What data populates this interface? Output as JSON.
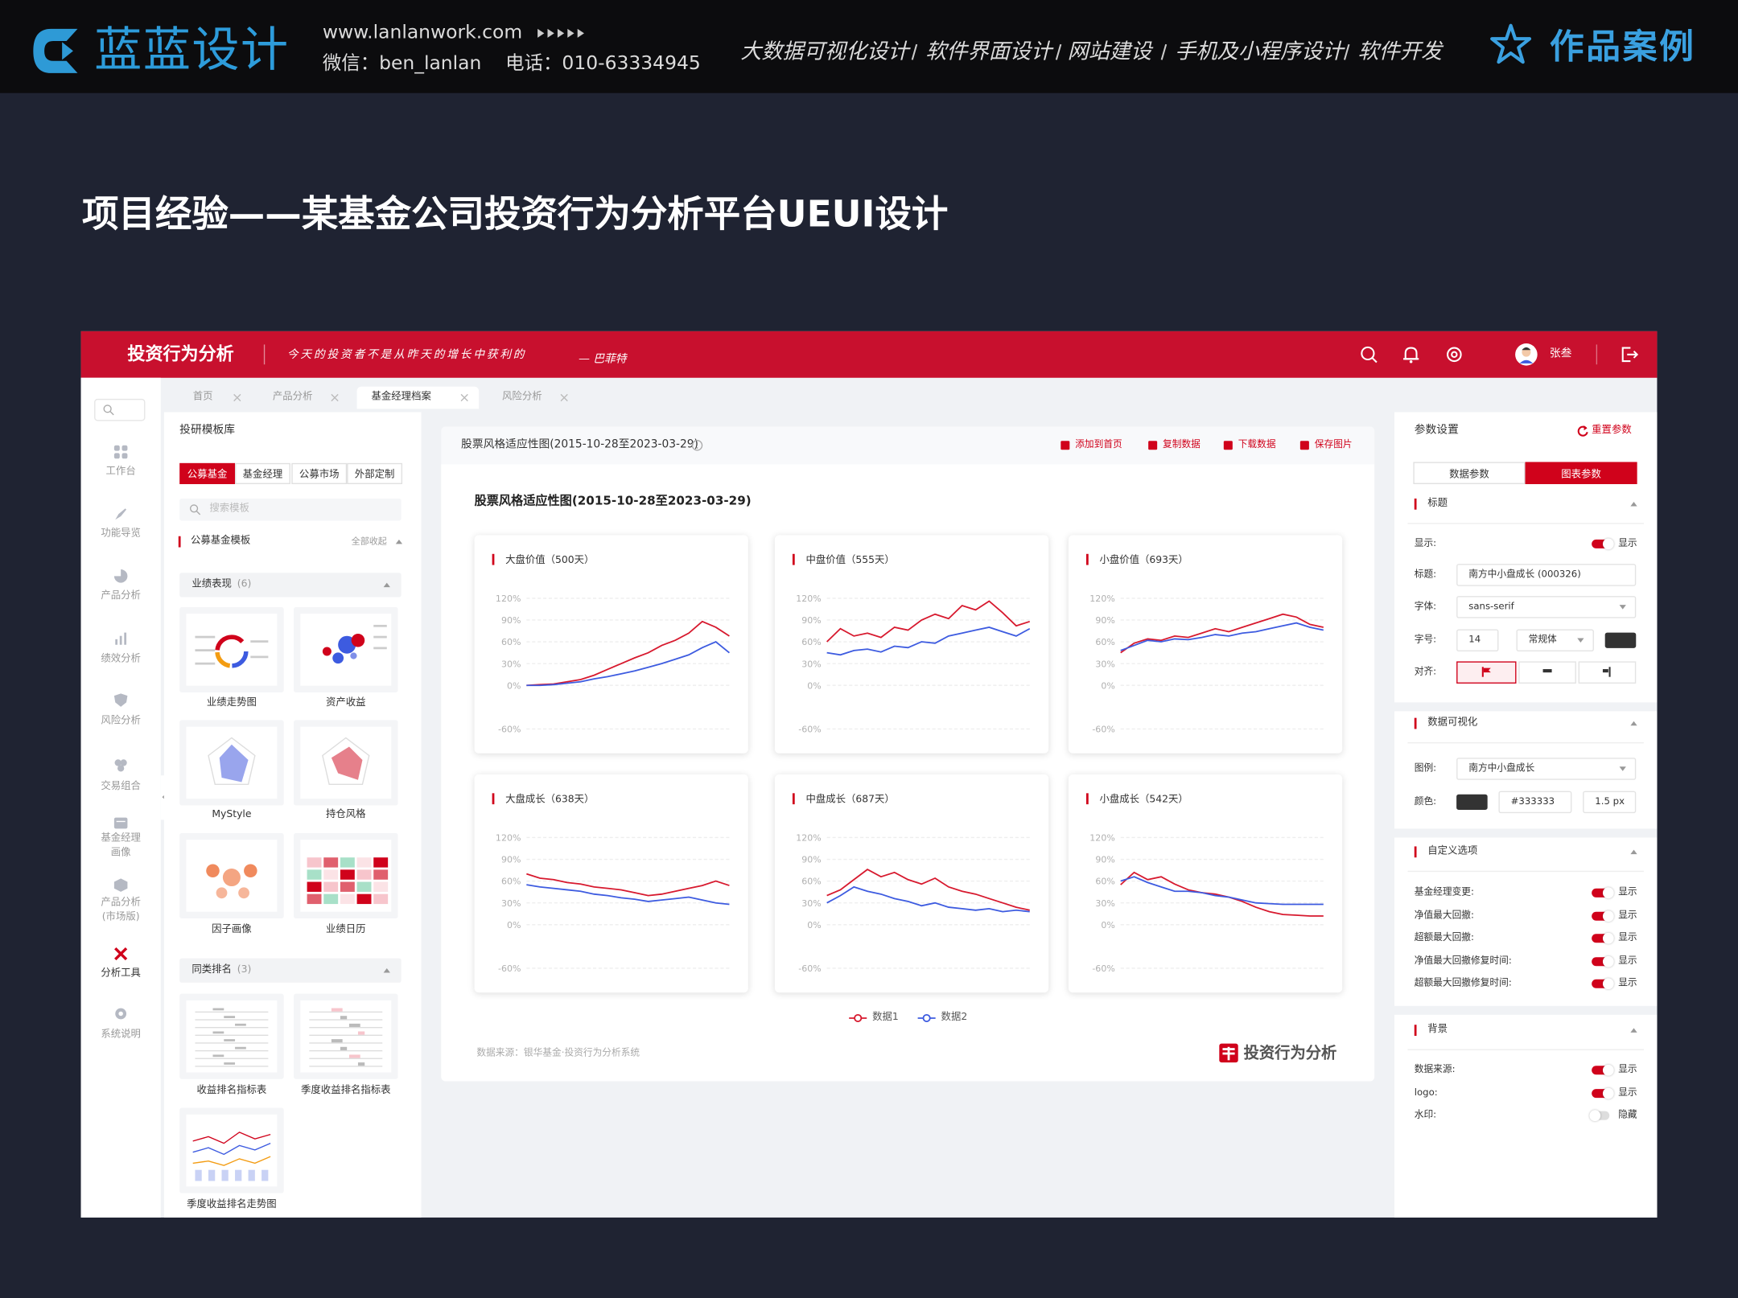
{
  "header": {
    "brand": "蓝蓝设计",
    "website": "www.lanlanwork.com",
    "wechat": "微信：ben_lanlan",
    "phone": "电话：010-63334945",
    "services": [
      "大数据可视化设计",
      "软件界面设计",
      "网站建设",
      "手机及小程序设计",
      "软件开发"
    ],
    "badge": "作品案例"
  },
  "page_title": "项目经验——某基金公司投资行为分析平台UEUI设计",
  "app": {
    "name": "投资行为分析",
    "motto": "今天的投资者不是从昨天的增长中获利的",
    "motto_author": "— 巴菲特",
    "user": "张叁",
    "nav": [
      {
        "label": "工作台"
      },
      {
        "label": "功能导览"
      },
      {
        "label": "产品分析"
      },
      {
        "label": "绩效分析"
      },
      {
        "label": "风险分析"
      },
      {
        "label": "交易组合"
      },
      {
        "label": "基金经理画像"
      },
      {
        "label": "产品分析(市场版)"
      },
      {
        "label": "分析工具",
        "active": true
      },
      {
        "label": "系统说明"
      }
    ],
    "tabs": [
      {
        "label": "首页"
      },
      {
        "label": "产品分析"
      },
      {
        "label": "基金经理档案",
        "active": true
      },
      {
        "label": "风险分析"
      }
    ]
  },
  "library": {
    "title": "投研模板库",
    "filters": [
      {
        "label": "公募基金",
        "active": true
      },
      {
        "label": "基金经理"
      },
      {
        "label": "公募市场"
      },
      {
        "label": "外部定制"
      }
    ],
    "search_placeholder": "搜索模板",
    "section": "公募基金模板",
    "collapse": "全部收起",
    "groups": [
      {
        "name": "业绩表现",
        "count": "(6)",
        "items": [
          "业绩走势图",
          "资产收益",
          "MyStyle",
          "持仓风格",
          "因子画像",
          "业绩日历"
        ]
      },
      {
        "name": "同类排名",
        "count": "(3)",
        "items": [
          "收益排名指标表",
          "季度收益排名指标表",
          "季度收益排名走势图"
        ]
      }
    ]
  },
  "panel": {
    "title": "股票风格适应性图(2015-10-28至2023-03-29)",
    "actions": [
      "添加到首页",
      "复制数据",
      "下载数据",
      "保存图片"
    ],
    "chart_title": "股票风格适应性图(2015-10-28至2023-03-29)",
    "source": "数据来源：银华基金·投资行为分析系统",
    "logo": "投资行为分析"
  },
  "settings": {
    "title": "参数设置",
    "reset": "重置参数",
    "tabs": [
      {
        "label": "数据参数"
      },
      {
        "label": "图表参数",
        "active": true
      }
    ],
    "title_section": {
      "heading": "标题",
      "show_label": "显示:",
      "show_state": "显示",
      "title_label": "标题:",
      "title_value": "南方中小盘成长 (000326)",
      "font_label": "字体:",
      "font_value": "sans-serif",
      "size_label": "字号:",
      "size_value": "14",
      "weight_value": "常规体",
      "align_label": "对齐:"
    },
    "viz_section": {
      "heading": "数据可视化",
      "legend_label": "图例:",
      "legend_value": "南方中小盘成长",
      "color_label": "颜色:",
      "color_value": "#333333",
      "width_value": "1.5 px"
    },
    "custom_section": {
      "heading": "自定义选项",
      "options": [
        {
          "label": "基金经理变更:",
          "state": "显示",
          "on": true
        },
        {
          "label": "净值最大回撤:",
          "state": "显示",
          "on": true
        },
        {
          "label": "超额最大回撤:",
          "state": "显示",
          "on": true
        },
        {
          "label": "净值最大回撤修复时间:",
          "state": "显示",
          "on": true
        },
        {
          "label": "超额最大回撤修复时间:",
          "state": "显示",
          "on": true
        }
      ]
    },
    "background_section": {
      "heading": "背景",
      "options": [
        {
          "label": "数据来源:",
          "state": "显示",
          "on": true
        },
        {
          "label": "logo:",
          "state": "显示",
          "on": true
        },
        {
          "label": "水印:",
          "state": "隐藏",
          "on": false
        }
      ]
    }
  },
  "chart_data": [
    {
      "type": "line",
      "title": "大盘价值（500天）",
      "ylim": [
        -60,
        120
      ],
      "yticks": [
        {
          "value": 120,
          "label": "120%"
        },
        {
          "value": 90,
          "label": "90%"
        },
        {
          "value": 60,
          "label": "60%"
        },
        {
          "value": 30,
          "label": "30%"
        },
        {
          "value": 0,
          "label": "0%"
        },
        {
          "value": -60,
          "label": "-60%"
        }
      ],
      "grid": true,
      "series": [
        {
          "name": "数据1",
          "color": "#d7192e",
          "values": [
            0,
            1,
            2,
            5,
            8,
            14,
            22,
            30,
            38,
            45,
            55,
            62,
            72,
            88,
            80,
            68
          ]
        },
        {
          "name": "数据2",
          "color": "#3d5be0",
          "values": [
            0,
            0,
            1,
            3,
            5,
            9,
            12,
            16,
            20,
            25,
            30,
            36,
            42,
            52,
            60,
            45
          ]
        }
      ]
    },
    {
      "type": "line",
      "title": "中盘价值（555天）",
      "ylim": [
        -60,
        120
      ],
      "yticks": [
        {
          "value": 120,
          "label": "120%"
        },
        {
          "value": 90,
          "label": "90%"
        },
        {
          "value": 60,
          "label": "60%"
        },
        {
          "value": 30,
          "label": "30%"
        },
        {
          "value": 0,
          "label": "0%"
        },
        {
          "value": -60,
          "label": "-60%"
        }
      ],
      "grid": true,
      "series": [
        {
          "name": "数据1",
          "color": "#d7192e",
          "values": [
            60,
            78,
            68,
            72,
            66,
            80,
            76,
            90,
            98,
            92,
            110,
            104,
            116,
            100,
            82,
            88
          ]
        },
        {
          "name": "数据2",
          "color": "#3d5be0",
          "values": [
            45,
            42,
            48,
            50,
            46,
            54,
            52,
            60,
            58,
            68,
            72,
            76,
            80,
            74,
            68,
            78
          ]
        }
      ]
    },
    {
      "type": "line",
      "title": "小盘价值（693天）",
      "ylim": [
        -60,
        120
      ],
      "yticks": [
        {
          "value": 120,
          "label": "120%"
        },
        {
          "value": 90,
          "label": "90%"
        },
        {
          "value": 60,
          "label": "60%"
        },
        {
          "value": 30,
          "label": "30%"
        },
        {
          "value": 0,
          "label": "0%"
        },
        {
          "value": -60,
          "label": "-60%"
        }
      ],
      "grid": true,
      "series": [
        {
          "name": "数据1",
          "color": "#d7192e",
          "values": [
            45,
            58,
            64,
            62,
            68,
            66,
            72,
            78,
            74,
            80,
            86,
            92,
            98,
            94,
            84,
            80
          ]
        },
        {
          "name": "数据2",
          "color": "#3d5be0",
          "values": [
            48,
            55,
            62,
            60,
            64,
            63,
            66,
            70,
            68,
            72,
            74,
            78,
            82,
            86,
            80,
            76
          ]
        }
      ]
    },
    {
      "type": "line",
      "title": "大盘成长（638天）",
      "ylim": [
        -60,
        120
      ],
      "yticks": [
        {
          "value": 120,
          "label": "120%"
        },
        {
          "value": 90,
          "label": "90%"
        },
        {
          "value": 60,
          "label": "60%"
        },
        {
          "value": 30,
          "label": "30%"
        },
        {
          "value": 0,
          "label": "0%"
        },
        {
          "value": -60,
          "label": "-60%"
        }
      ],
      "grid": true,
      "series": [
        {
          "name": "数据1",
          "color": "#d7192e",
          "values": [
            70,
            64,
            62,
            58,
            56,
            52,
            50,
            48,
            44,
            40,
            42,
            46,
            50,
            54,
            60,
            54
          ]
        },
        {
          "name": "数据2",
          "color": "#3d5be0",
          "values": [
            55,
            52,
            50,
            48,
            46,
            42,
            40,
            37,
            35,
            32,
            34,
            36,
            38,
            34,
            30,
            28
          ]
        }
      ]
    },
    {
      "type": "line",
      "title": "中盘成长（687天）",
      "ylim": [
        -60,
        120
      ],
      "yticks": [
        {
          "value": 120,
          "label": "120%"
        },
        {
          "value": 90,
          "label": "90%"
        },
        {
          "value": 60,
          "label": "60%"
        },
        {
          "value": 30,
          "label": "30%"
        },
        {
          "value": 0,
          "label": "0%"
        },
        {
          "value": -60,
          "label": "-60%"
        }
      ],
      "grid": true,
      "series": [
        {
          "name": "数据1",
          "color": "#d7192e",
          "values": [
            40,
            48,
            62,
            76,
            66,
            72,
            62,
            56,
            64,
            52,
            46,
            42,
            36,
            30,
            24,
            20
          ]
        },
        {
          "name": "数据2",
          "color": "#3d5be0",
          "values": [
            30,
            40,
            52,
            46,
            42,
            36,
            32,
            26,
            30,
            24,
            22,
            20,
            22,
            18,
            20,
            18
          ]
        }
      ]
    },
    {
      "type": "line",
      "title": "小盘成长（542天）",
      "ylim": [
        -60,
        120
      ],
      "yticks": [
        {
          "value": 120,
          "label": "120%"
        },
        {
          "value": 90,
          "label": "90%"
        },
        {
          "value": 60,
          "label": "60%"
        },
        {
          "value": 30,
          "label": "30%"
        },
        {
          "value": 0,
          "label": "0%"
        },
        {
          "value": -60,
          "label": "-60%"
        }
      ],
      "grid": true,
      "series": [
        {
          "name": "数据1",
          "color": "#d7192e",
          "values": [
            55,
            72,
            62,
            66,
            56,
            48,
            44,
            42,
            38,
            32,
            24,
            18,
            14,
            13,
            12,
            12
          ]
        },
        {
          "name": "数据2",
          "color": "#3d5be0",
          "values": [
            60,
            66,
            58,
            52,
            46,
            46,
            44,
            40,
            38,
            34,
            30,
            29,
            28,
            28,
            28,
            28
          ]
        }
      ]
    }
  ]
}
